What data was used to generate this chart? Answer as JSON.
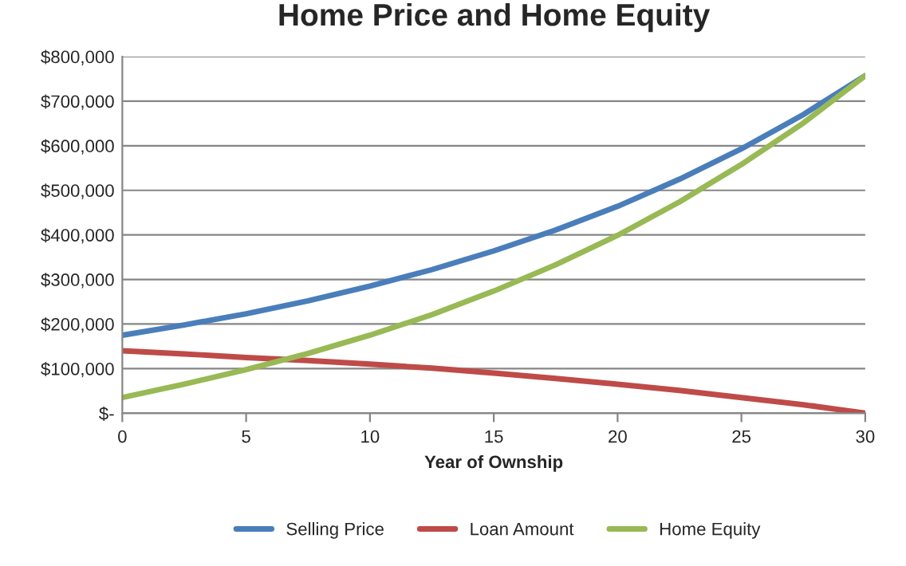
{
  "chart_data": {
    "type": "line",
    "title": "Home Price and Home Equity",
    "xlabel": "Year of Ownship",
    "x": [
      0,
      2.5,
      5,
      7.5,
      10,
      12.5,
      15,
      17.5,
      20,
      22.5,
      25,
      27.5,
      30
    ],
    "series": [
      {
        "name": "Selling Price",
        "color": "#4a7ebb",
        "values": [
          175000,
          198000,
          223000,
          252000,
          285000,
          322000,
          364000,
          411000,
          464000,
          525000,
          593000,
          670000,
          757000
        ]
      },
      {
        "name": "Loan Amount",
        "color": "#be4b48",
        "values": [
          140000,
          133000,
          125000,
          118000,
          110000,
          101000,
          90000,
          78000,
          65000,
          51000,
          35000,
          19000,
          0
        ]
      },
      {
        "name": "Home Equity",
        "color": "#98b954",
        "values": [
          35000,
          65000,
          98000,
          134000,
          175000,
          221000,
          274000,
          333000,
          399000,
          474000,
          558000,
          651000,
          757000
        ]
      }
    ],
    "xlim": [
      0,
      30
    ],
    "xticks": [
      0,
      5,
      10,
      15,
      20,
      25,
      30
    ],
    "ylim": [
      0,
      800000
    ],
    "yticks": [
      {
        "value": 0,
        "label": "$-"
      },
      {
        "value": 100000,
        "label": "$100,000"
      },
      {
        "value": 200000,
        "label": "$200,000"
      },
      {
        "value": 300000,
        "label": "$300,000"
      },
      {
        "value": 400000,
        "label": "$400,000"
      },
      {
        "value": 500000,
        "label": "$500,000"
      },
      {
        "value": 600000,
        "label": "$600,000"
      },
      {
        "value": 700000,
        "label": "$700,000"
      },
      {
        "value": 800000,
        "label": "$800,000"
      }
    ],
    "grid": "y",
    "legend": "bottom",
    "marker": "none",
    "line_style": "solid"
  }
}
